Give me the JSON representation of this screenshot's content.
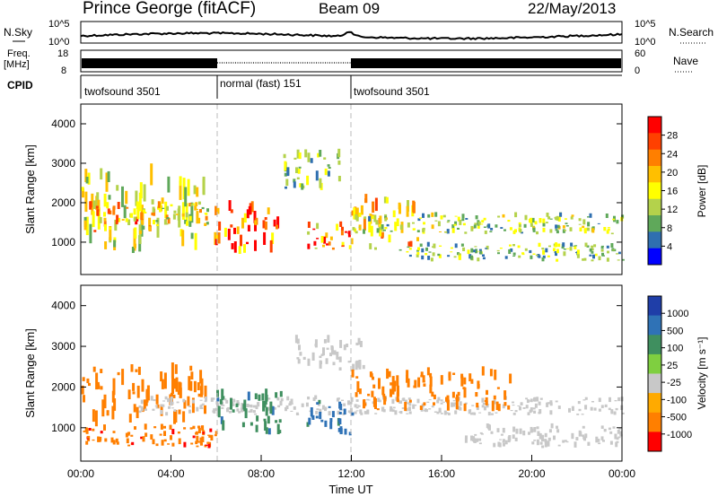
{
  "header": {
    "station": "Prince George (fitACF)",
    "beam": "Beam 09",
    "date": "22/May/2013"
  },
  "strip_panels": {
    "nsky_label": "N.Sky",
    "nsky_ticks": [
      "10^5",
      "10^0"
    ],
    "nsearch_label": "N.Search",
    "freq_label_1": "Freq.",
    "freq_label_2": "[MHz]",
    "freq_ticks": [
      "18",
      "8"
    ],
    "nave_ticks": [
      "60",
      "0"
    ],
    "nave_label": "Nave",
    "cpid_label": "CPID",
    "cpid_segments": [
      {
        "label": "twofsound 3501",
        "start_hour": 0,
        "end_hour": 6
      },
      {
        "label": "normal (fast) 151",
        "start_hour": 6,
        "end_hour": 12
      },
      {
        "label": "twofsound 3501",
        "start_hour": 12,
        "end_hour": 24
      }
    ]
  },
  "colorbars": {
    "power": {
      "label": "Power [dB]",
      "ticks": [
        "28",
        "24",
        "20",
        "16",
        "12",
        "8",
        "4"
      ],
      "colors": [
        "#ff0000",
        "#ff4000",
        "#ff7f00",
        "#ffbf00",
        "#ffff00",
        "#b4d24b",
        "#5fa85a",
        "#2f6fb0",
        "#0000ff"
      ]
    },
    "velocity": {
      "label": "Velocity [m s⁻¹]",
      "ticks": [
        "1000",
        "500",
        "100",
        "25",
        "-25",
        "-100",
        "-500",
        "-1000"
      ],
      "colors": [
        "#1f3ea8",
        "#2f72b6",
        "#3f8f5f",
        "#7fcf40",
        "#c8c8c8",
        "#ffaa00",
        "#ff7f00",
        "#ff0000"
      ]
    }
  },
  "chart_data": [
    {
      "type": "heatmap",
      "title": "",
      "ylabel": "Slant Range [km]",
      "xlabel": "",
      "ylim": [
        180,
        4500
      ],
      "xlim": [
        0,
        24
      ],
      "yticks": [
        1000,
        2000,
        3000,
        4000
      ],
      "xticks": [
        "00:00",
        "04:00",
        "08:00",
        "12:00",
        "16:00",
        "20:00",
        "00:00"
      ],
      "mode_change_hours": [
        6,
        12
      ],
      "quantity": "Power [dB]",
      "regions": [
        {
          "t0": 0.0,
          "t1": 5.5,
          "r0": 700,
          "r1": 2600,
          "value": 14
        },
        {
          "t0": 0.3,
          "t1": 3.5,
          "r0": 1200,
          "r1": 1900,
          "value": 20
        },
        {
          "t0": 3.0,
          "t1": 5.8,
          "r0": 1400,
          "r1": 2000,
          "value": 16
        },
        {
          "t0": 5.8,
          "t1": 8.8,
          "r0": 700,
          "r1": 1800,
          "value": 26
        },
        {
          "t0": 8.8,
          "t1": 11.5,
          "r0": 2300,
          "r1": 3200,
          "value": 10
        },
        {
          "t0": 10.0,
          "t1": 12.0,
          "r0": 800,
          "r1": 1400,
          "value": 22
        },
        {
          "t0": 12.0,
          "t1": 15.0,
          "r0": 800,
          "r1": 2000,
          "value": 18
        },
        {
          "t0": 12.0,
          "t1": 24.0,
          "r0": 1200,
          "r1": 1650,
          "value": 12
        },
        {
          "t0": 14.0,
          "t1": 24.0,
          "r0": 500,
          "r1": 900,
          "value": 10
        }
      ]
    },
    {
      "type": "heatmap",
      "title": "",
      "ylabel": "Slant Range [km]",
      "xlabel": "Time UT",
      "ylim": [
        180,
        4500
      ],
      "xlim": [
        0,
        24
      ],
      "yticks": [
        1000,
        2000,
        3000,
        4000
      ],
      "xticks": [
        "00:00",
        "04:00",
        "08:00",
        "12:00",
        "16:00",
        "20:00",
        "00:00"
      ],
      "mode_change_hours": [
        6,
        12
      ],
      "quantity": "Velocity [m s⁻¹]",
      "regions": [
        {
          "t0": 0.0,
          "t1": 5.5,
          "r0": 1000,
          "r1": 2400,
          "value": -300
        },
        {
          "t0": 0.0,
          "t1": 6.0,
          "r0": 500,
          "r1": 1000,
          "value": -400
        },
        {
          "t0": 2.5,
          "t1": 24.0,
          "r0": 1300,
          "r1": 1700,
          "value": 0
        },
        {
          "t0": 6.0,
          "t1": 9.0,
          "r0": 800,
          "r1": 1800,
          "value": 200
        },
        {
          "t0": 9.5,
          "t1": 12.5,
          "r0": 2400,
          "r1": 3100,
          "value": 0
        },
        {
          "t0": 10.0,
          "t1": 12.0,
          "r0": 800,
          "r1": 1600,
          "value": 300
        },
        {
          "t0": 12.0,
          "t1": 19.0,
          "r0": 1400,
          "r1": 2300,
          "value": -300
        },
        {
          "t0": 17.0,
          "t1": 24.0,
          "r0": 500,
          "r1": 1000,
          "value": 0
        }
      ]
    }
  ]
}
